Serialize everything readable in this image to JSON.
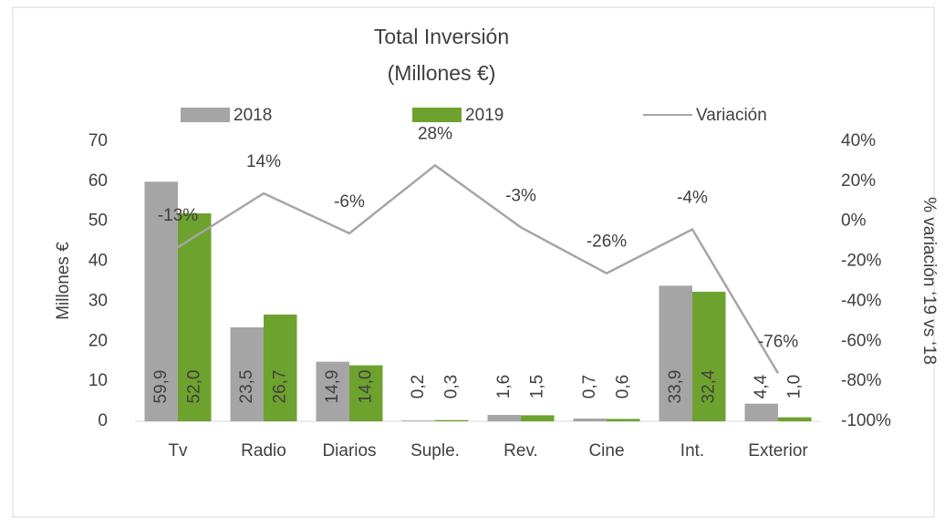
{
  "chart_data": {
    "type": "bar",
    "title": "Total Inversión",
    "subtitle": "(Millones €)",
    "y_label": "Millones €",
    "y2_label": "% variación ‘19 vs ‘18",
    "categories": [
      "Tv",
      "Radio",
      "Diarios",
      "Suple.",
      "Rev.",
      "Cine",
      "Int.",
      "Exterior"
    ],
    "series": [
      {
        "name": "2018",
        "color": "#a5a5a5",
        "values": [
          59.9,
          23.5,
          14.9,
          0.2,
          1.6,
          0.7,
          33.9,
          4.4
        ],
        "value_labels": [
          "59,9",
          "23,5",
          "14,9",
          "0,2",
          "1,6",
          "0,7",
          "33,9",
          "4,4"
        ]
      },
      {
        "name": "2019",
        "color": "#6ea22e",
        "values": [
          52.0,
          26.7,
          14.0,
          0.3,
          1.5,
          0.6,
          32.4,
          1.0
        ],
        "value_labels": [
          "52,0",
          "26,7",
          "14,0",
          "0,3",
          "1,5",
          "0,6",
          "32,4",
          "1,0"
        ]
      },
      {
        "name": "Variación",
        "type": "line",
        "axis": "y2",
        "color": "#a6a6a6",
        "values": [
          -13,
          14,
          -6,
          28,
          -3,
          -26,
          -4,
          -76
        ],
        "value_labels": [
          "-13%",
          "14%",
          "-6%",
          "28%",
          "-3%",
          "-26%",
          "-4%",
          "-76%"
        ]
      }
    ],
    "ylim": [
      0,
      70
    ],
    "yticks": [
      0,
      10,
      20,
      30,
      40,
      50,
      60,
      70
    ],
    "y2lim": [
      -100,
      40
    ],
    "y2ticks": [
      {
        "value": 40,
        "label": "40%"
      },
      {
        "value": 20,
        "label": "20%"
      },
      {
        "value": 0,
        "label": "0%"
      },
      {
        "value": -20,
        "label": "-20%"
      },
      {
        "value": -40,
        "label": "-40%"
      },
      {
        "value": -60,
        "label": "-60%"
      },
      {
        "value": -80,
        "label": "-80%"
      },
      {
        "value": -100,
        "label": "-100%"
      }
    ],
    "grid": false,
    "legend": "top"
  }
}
